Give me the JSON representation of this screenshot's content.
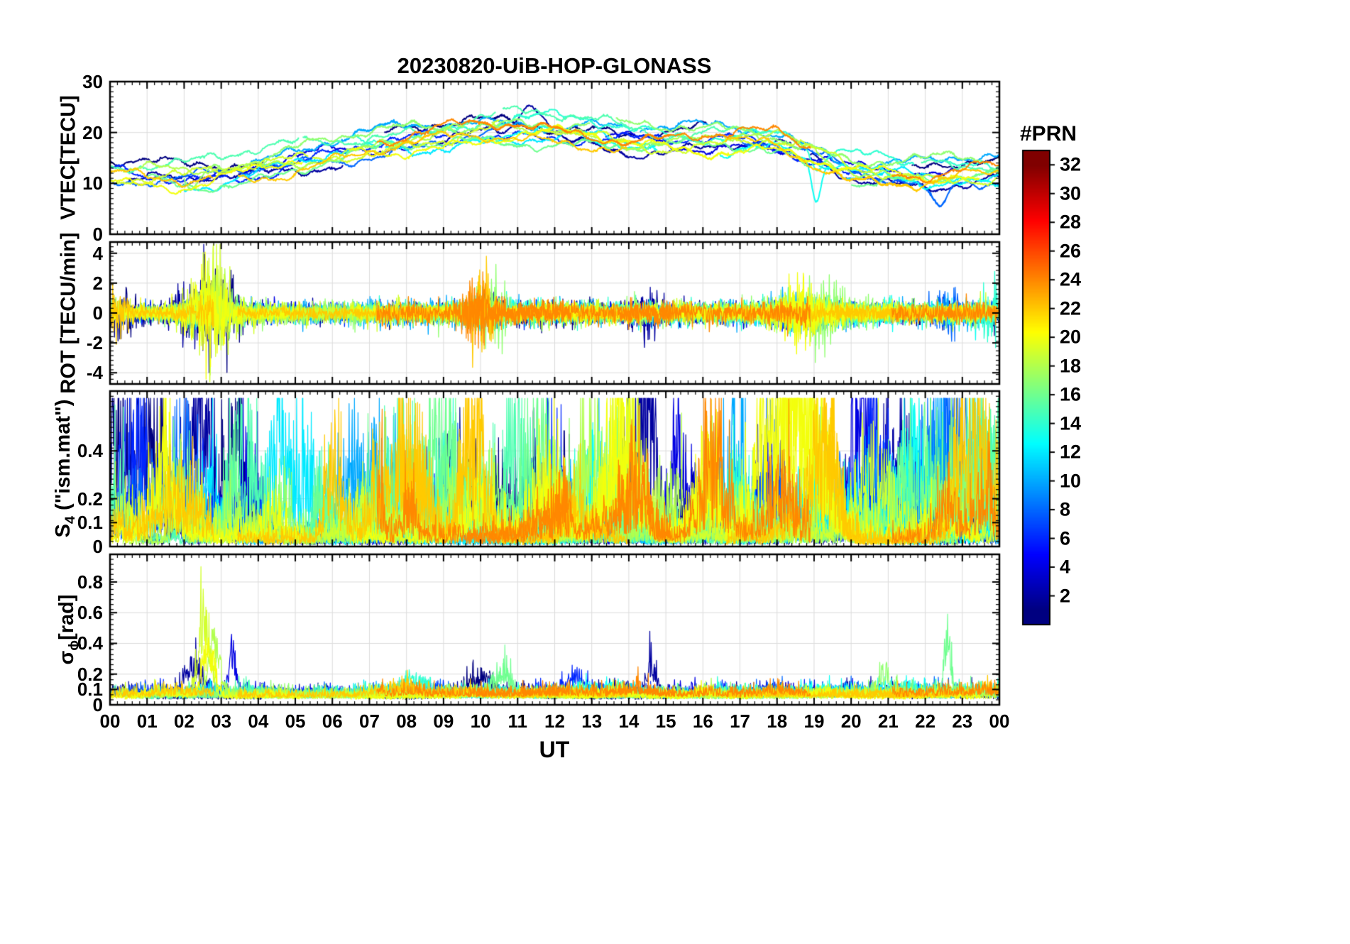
{
  "chart_data": {
    "type": "line",
    "title": "20230820-UiB-HOP-GLONASS",
    "xlabel": "UT",
    "x_range": [
      0,
      24
    ],
    "x_tick_labels": [
      "00",
      "01",
      "02",
      "03",
      "04",
      "05",
      "06",
      "07",
      "08",
      "09",
      "10",
      "11",
      "12",
      "13",
      "14",
      "15",
      "16",
      "17",
      "18",
      "19",
      "20",
      "21",
      "22",
      "23",
      "00"
    ],
    "grid": true,
    "legend_position": "none",
    "colorbar": {
      "label": "#PRN",
      "colormap": "jet",
      "range": [
        1,
        32
      ],
      "ticks": [
        2,
        4,
        6,
        8,
        10,
        12,
        14,
        16,
        18,
        20,
        22,
        24,
        26,
        28,
        30,
        32
      ]
    },
    "prns": [
      1,
      2,
      4,
      6,
      8,
      10,
      12,
      13,
      14,
      15,
      16,
      17,
      18,
      19,
      20,
      22,
      24
    ],
    "panels": [
      {
        "id": "vtec",
        "ylabel": "VTEC[TECU]",
        "ylabel_parts": [
          {
            "t": "VTEC[TECU]",
            "sub": false
          }
        ],
        "ylim": [
          0,
          30
        ],
        "yticks": [
          0,
          10,
          20,
          30
        ],
        "envelope": {
          "x": [
            0,
            1,
            2,
            3,
            4,
            5,
            6,
            7,
            8,
            9,
            10,
            11,
            12,
            13,
            14,
            15,
            16,
            17,
            18,
            19,
            20,
            21,
            22,
            23,
            24
          ],
          "y": [
            12.5,
            12,
            11.5,
            12.5,
            13.5,
            15,
            16.5,
            17.5,
            18.5,
            19.5,
            20.5,
            21,
            20.5,
            20,
            19,
            18.5,
            18.5,
            19,
            18.5,
            16,
            13,
            12.5,
            12,
            12.5,
            12.5
          ]
        },
        "events": [
          {
            "prn": 2,
            "t": 11.4,
            "amp": 6.5,
            "w": 0.45
          },
          {
            "prn": 13,
            "t": 19.05,
            "amp": -8,
            "w": 0.18
          },
          {
            "prn": 14,
            "t": 19.1,
            "amp": -5,
            "w": 0.25
          },
          {
            "prn": 8,
            "t": 22.35,
            "amp": -5,
            "w": 0.3
          },
          {
            "prn": 17,
            "t": 2.2,
            "amp": -4,
            "w": 0.3
          }
        ]
      },
      {
        "id": "rot",
        "ylabel": "ROT [TECU/min]",
        "ylabel_parts": [
          {
            "t": "ROT [TECU/min]",
            "sub": false
          }
        ],
        "ylim": [
          -4.75,
          4.75
        ],
        "yticks": [
          -4,
          -2,
          0,
          2,
          4
        ],
        "events": [
          {
            "prn": 19,
            "t": 2.75,
            "amp": 2.8,
            "w": 0.5
          },
          {
            "prn": 18,
            "t": 2.95,
            "amp": 2.4,
            "w": 0.4
          },
          {
            "prn": 2,
            "t": 2.35,
            "amp": 2.2,
            "w": 0.5
          },
          {
            "prn": 1,
            "t": 3.15,
            "amp": 1.9,
            "w": 0.4
          },
          {
            "prn": 20,
            "t": 2.6,
            "amp": 2.2,
            "w": 0.5
          },
          {
            "prn": 22,
            "t": 10.05,
            "amp": 2.2,
            "w": 0.4
          },
          {
            "prn": 17,
            "t": 10.35,
            "amp": 1.6,
            "w": 0.4
          },
          {
            "prn": 24,
            "t": 9.8,
            "amp": 1.6,
            "w": 0.35
          },
          {
            "prn": 20,
            "t": 18.6,
            "amp": 1.3,
            "w": 0.6
          },
          {
            "prn": 17,
            "t": 19.3,
            "amp": 1.5,
            "w": 0.4
          },
          {
            "prn": 8,
            "t": 22.6,
            "amp": 1.3,
            "w": 0.4
          },
          {
            "prn": 1,
            "t": 0.3,
            "amp": 1.5,
            "w": 0.4
          },
          {
            "prn": 22,
            "t": 0.2,
            "amp": 1.3,
            "w": 0.3
          },
          {
            "prn": 14,
            "t": 23.8,
            "amp": 1.4,
            "w": 0.3
          },
          {
            "prn": 2,
            "t": 14.6,
            "amp": 1.0,
            "w": 0.4
          }
        ]
      },
      {
        "id": "s4",
        "ylabel": "S4 (\"ism.mat\")",
        "ylabel_parts": [
          {
            "t": "S",
            "sub": false
          },
          {
            "t": "4",
            "sub": true
          },
          {
            "t": " (\"ism.mat\")",
            "sub": false
          }
        ],
        "ylim": [
          0,
          0.65
        ],
        "yticks": [
          0,
          0.1,
          0.2,
          0.4
        ],
        "events": [
          {
            "prn": 1,
            "t": 1.2,
            "peak": 0.42,
            "w": 0.5
          },
          {
            "prn": 2,
            "t": 2.4,
            "peak": 0.5,
            "w": 0.45
          },
          {
            "prn": 1,
            "t": 3.4,
            "peak": 0.4,
            "w": 0.5
          },
          {
            "prn": 6,
            "t": 0.6,
            "peak": 0.3,
            "w": 0.4
          },
          {
            "prn": 8,
            "t": 2.0,
            "peak": 0.3,
            "w": 0.6
          },
          {
            "prn": 12,
            "t": 4.6,
            "peak": 0.52,
            "w": 0.35
          },
          {
            "prn": 12,
            "t": 5.3,
            "peak": 0.35,
            "w": 0.3
          },
          {
            "prn": 22,
            "t": 6.05,
            "peak": 0.38,
            "w": 0.3
          },
          {
            "prn": 10,
            "t": 6.4,
            "peak": 0.28,
            "w": 0.4
          },
          {
            "prn": 15,
            "t": 7.8,
            "peak": 0.32,
            "w": 0.5
          },
          {
            "prn": 16,
            "t": 8.6,
            "peak": 0.4,
            "w": 0.5
          },
          {
            "prn": 14,
            "t": 9.1,
            "peak": 0.36,
            "w": 0.4
          },
          {
            "prn": 22,
            "t": 9.9,
            "peak": 0.4,
            "w": 0.4
          },
          {
            "prn": 15,
            "t": 10.9,
            "peak": 0.45,
            "w": 0.5
          },
          {
            "prn": 16,
            "t": 11.6,
            "peak": 0.4,
            "w": 0.5
          },
          {
            "prn": 18,
            "t": 12.9,
            "peak": 0.5,
            "w": 0.4
          },
          {
            "prn": 20,
            "t": 13.9,
            "peak": 0.4,
            "w": 0.5
          },
          {
            "prn": 2,
            "t": 14.5,
            "peak": 0.52,
            "w": 0.3
          },
          {
            "prn": 19,
            "t": 14.2,
            "peak": 0.35,
            "w": 0.4
          },
          {
            "prn": 24,
            "t": 16.3,
            "peak": 0.32,
            "w": 0.5
          },
          {
            "prn": 10,
            "t": 16.9,
            "peak": 0.28,
            "w": 0.4
          },
          {
            "prn": 20,
            "t": 17.6,
            "peak": 0.3,
            "w": 0.5
          },
          {
            "prn": 20,
            "t": 18.5,
            "peak": 0.55,
            "w": 0.55
          },
          {
            "prn": 22,
            "t": 19.2,
            "peak": 0.45,
            "w": 0.5
          },
          {
            "prn": 4,
            "t": 20.3,
            "peak": 0.55,
            "w": 0.35
          },
          {
            "prn": 6,
            "t": 20.7,
            "peak": 0.45,
            "w": 0.4
          },
          {
            "prn": 2,
            "t": 21.5,
            "peak": 0.35,
            "w": 0.4
          },
          {
            "prn": 10,
            "t": 22.3,
            "peak": 0.5,
            "w": 0.4
          },
          {
            "prn": 8,
            "t": 22.9,
            "peak": 0.45,
            "w": 0.4
          },
          {
            "prn": 22,
            "t": 23.1,
            "peak": 0.4,
            "w": 0.35
          },
          {
            "prn": 12,
            "t": 23.5,
            "peak": 0.35,
            "w": 0.3
          }
        ]
      },
      {
        "id": "sigma_phi",
        "ylabel": "σϕ[rad]",
        "ylabel_parts": [
          {
            "t": "σ",
            "sub": false
          },
          {
            "t": "ϕ",
            "sub": true
          },
          {
            "t": "[rad]",
            "sub": false
          }
        ],
        "ylim": [
          0,
          0.98
        ],
        "yticks": [
          0,
          0.1,
          0.2,
          0.4,
          0.6,
          0.8
        ],
        "events": [
          {
            "prn": 19,
            "t": 2.55,
            "peak": 0.5,
            "w": 0.22
          },
          {
            "prn": 18,
            "t": 2.8,
            "peak": 0.42,
            "w": 0.2
          },
          {
            "prn": 20,
            "t": 2.65,
            "peak": 0.3,
            "w": 0.25
          },
          {
            "prn": 4,
            "t": 3.3,
            "peak": 0.26,
            "w": 0.12
          },
          {
            "prn": 2,
            "t": 2.2,
            "peak": 0.18,
            "w": 0.3
          },
          {
            "prn": 1,
            "t": 10.0,
            "peak": 0.14,
            "w": 0.4
          },
          {
            "prn": 14,
            "t": 8.2,
            "peak": 0.1,
            "w": 0.5
          },
          {
            "prn": 2,
            "t": 14.6,
            "peak": 0.17,
            "w": 0.2
          },
          {
            "prn": 16,
            "t": 22.6,
            "peak": 0.38,
            "w": 0.12
          },
          {
            "prn": 17,
            "t": 20.9,
            "peak": 0.13,
            "w": 0.3
          },
          {
            "prn": 16,
            "t": 10.6,
            "peak": 0.15,
            "w": 0.3
          },
          {
            "prn": 6,
            "t": 12.6,
            "peak": 0.12,
            "w": 0.3
          }
        ]
      }
    ]
  }
}
